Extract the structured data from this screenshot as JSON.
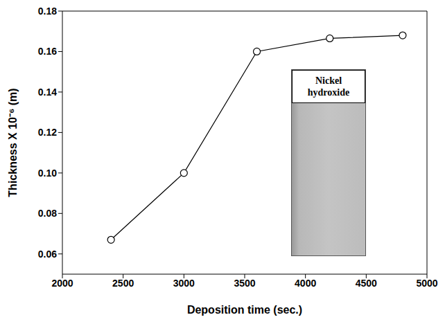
{
  "chart_data": {
    "type": "line",
    "x_label": "Deposition time (sec.)",
    "y_label": "Thickness X 10⁻⁶ (m)",
    "annotation": "Nickel hydroxide",
    "x": [
      2400,
      3000,
      3600,
      4200,
      4800
    ],
    "values": [
      0.067,
      0.1,
      0.16,
      0.1665,
      0.168
    ],
    "color": "#000000",
    "marker": "circle",
    "line_style": "solid",
    "xlim": [
      2000,
      5000
    ],
    "xticks": [
      2000,
      2500,
      3000,
      3500,
      4000,
      4500,
      5000
    ],
    "ylim": [
      0.05,
      0.18
    ],
    "yticks": [
      0.06,
      0.08,
      {
        "value": 0.1,
        "label": "0.10"
      },
      0.12,
      0.14,
      0.16,
      0.18
    ],
    "grid": false
  }
}
